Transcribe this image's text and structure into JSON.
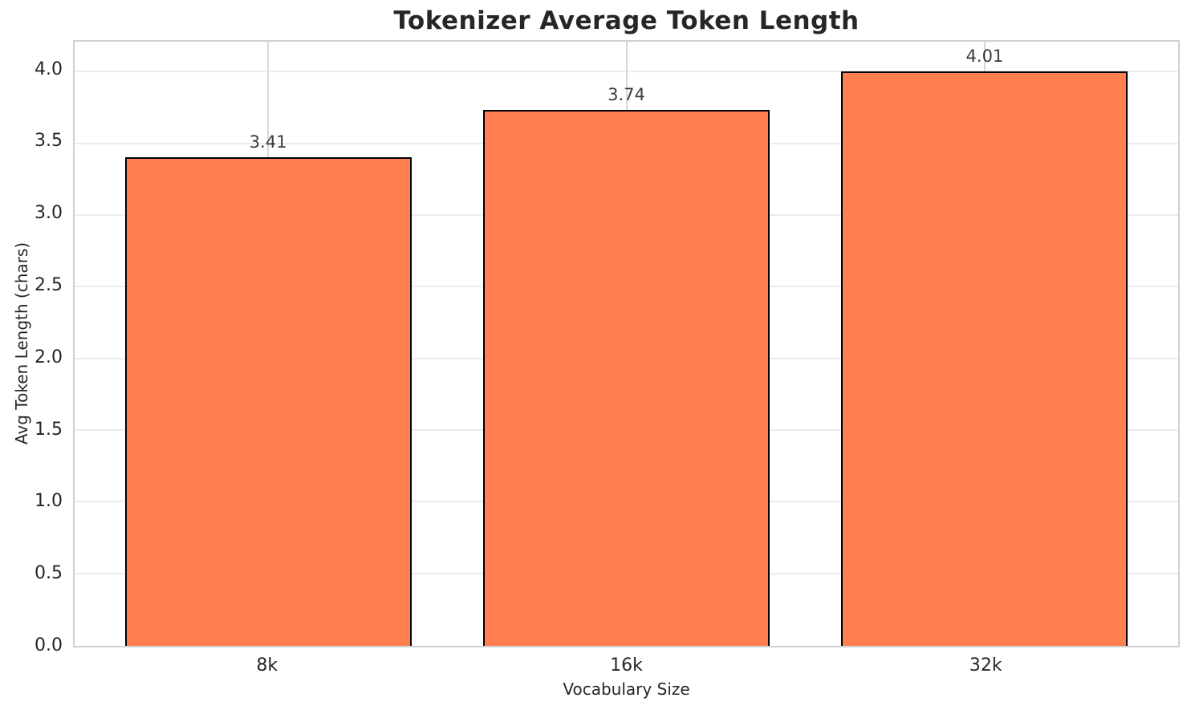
{
  "chart_data": {
    "type": "bar",
    "title": "Tokenizer Average Token Length",
    "xlabel": "Vocabulary Size",
    "ylabel": "Avg Token Length (chars)",
    "categories": [
      "8k",
      "16k",
      "32k"
    ],
    "values": [
      3.41,
      3.74,
      4.01
    ],
    "value_labels": [
      "3.41",
      "3.74",
      "4.01"
    ],
    "ytick_values": [
      0.0,
      0.5,
      1.0,
      1.5,
      2.0,
      2.5,
      3.0,
      3.5,
      4.0
    ],
    "ytick_labels": [
      "0.0",
      "0.5",
      "1.0",
      "1.5",
      "2.0",
      "2.5",
      "3.0",
      "3.5",
      "4.0"
    ],
    "ylim": [
      0,
      4.215
    ],
    "xlim": [
      -0.54,
      2.54
    ],
    "bar_width": 0.8,
    "grid": true,
    "legend_position": "none",
    "colors": {
      "bar_fill": "#FF7F50",
      "bar_edge": "#000000",
      "text": "#262626",
      "spine": "#d0d0d0",
      "grid_horizontal": "#ececec",
      "grid_vertical": "#d9d9d9",
      "background": "#ffffff"
    }
  }
}
